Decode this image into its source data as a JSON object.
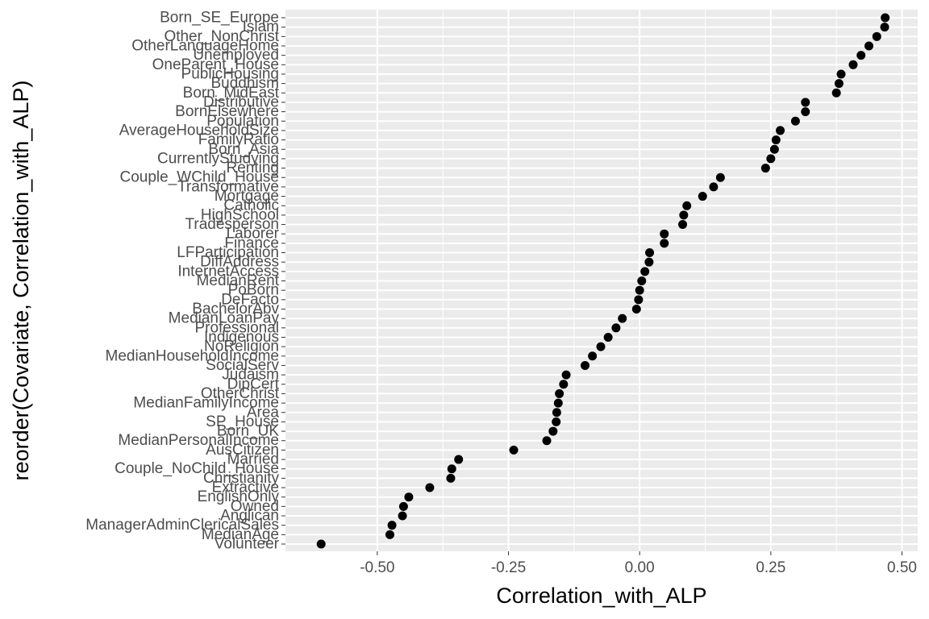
{
  "colors": {
    "panel_background": "#ebebeb",
    "grid_major": "#ffffff",
    "point": "#000000",
    "tick_label": "#4d4d4d"
  },
  "chart_data": {
    "type": "scatter",
    "xlabel": "Correlation_with_ALP",
    "ylabel": "reorder(Covariate, Correlation_with_ALP)",
    "xlim": [
      -0.675,
      0.53
    ],
    "x_ticks": [
      -0.5,
      -0.25,
      0.0,
      0.25,
      0.5
    ],
    "x_tick_labels": [
      "-0.50",
      "-0.25",
      "0.00",
      "0.25",
      "0.50"
    ],
    "grid": true,
    "categories": [
      "Born_SE_Europe",
      "Islam",
      "Other_NonChrist",
      "OtherLanguageHome",
      "Unemployed",
      "OneParent_House",
      "PublicHousing",
      "Buddhism",
      "Born_MidEast",
      "Distributive",
      "BornElsewhere",
      "Population",
      "AverageHouseholdSize",
      "FamilyRatio",
      "Born_Asia",
      "CurrentlyStudying",
      "Renting",
      "Couple_WChild_House",
      "Transformative",
      "Mortgage",
      "Catholic",
      "HighSchool",
      "Tradesperson",
      "Laborer",
      "Finance",
      "LFParticipation",
      "DiffAddress",
      "InternetAccess",
      "MedianRent",
      "PoBorn",
      "DeFacto",
      "BachelorAbv",
      "MedianLoanPay",
      "Professional",
      "Indigenous",
      "NoReligion",
      "MedianHouseholdIncome",
      "SocialServ",
      "Judaism",
      "DipCert",
      "OtherChrist",
      "MedianFamilyIncome",
      "Area",
      "SP_House",
      "Born_UK",
      "MedianPersonalIncome",
      "AusCitizen",
      "Married",
      "Couple_NoChild_House",
      "Christianity",
      "Extractive",
      "EnglishOnly",
      "Owned",
      "Anglican",
      "ManagerAdminClericalSales",
      "MedianAge",
      "Volunteer"
    ],
    "values": [
      0.468,
      0.467,
      0.452,
      0.437,
      0.422,
      0.407,
      0.384,
      0.38,
      0.375,
      0.316,
      0.316,
      0.297,
      0.268,
      0.26,
      0.257,
      0.25,
      0.24,
      0.154,
      0.141,
      0.12,
      0.09,
      0.084,
      0.082,
      0.047,
      0.047,
      0.019,
      0.018,
      0.01,
      0.004,
      0.0,
      -0.002,
      -0.006,
      -0.033,
      -0.045,
      -0.06,
      -0.074,
      -0.09,
      -0.104,
      -0.14,
      -0.145,
      -0.153,
      -0.155,
      -0.158,
      -0.159,
      -0.165,
      -0.177,
      -0.24,
      -0.345,
      -0.358,
      -0.36,
      -0.4,
      -0.44,
      -0.45,
      -0.452,
      -0.472,
      -0.476,
      -0.607
    ]
  }
}
